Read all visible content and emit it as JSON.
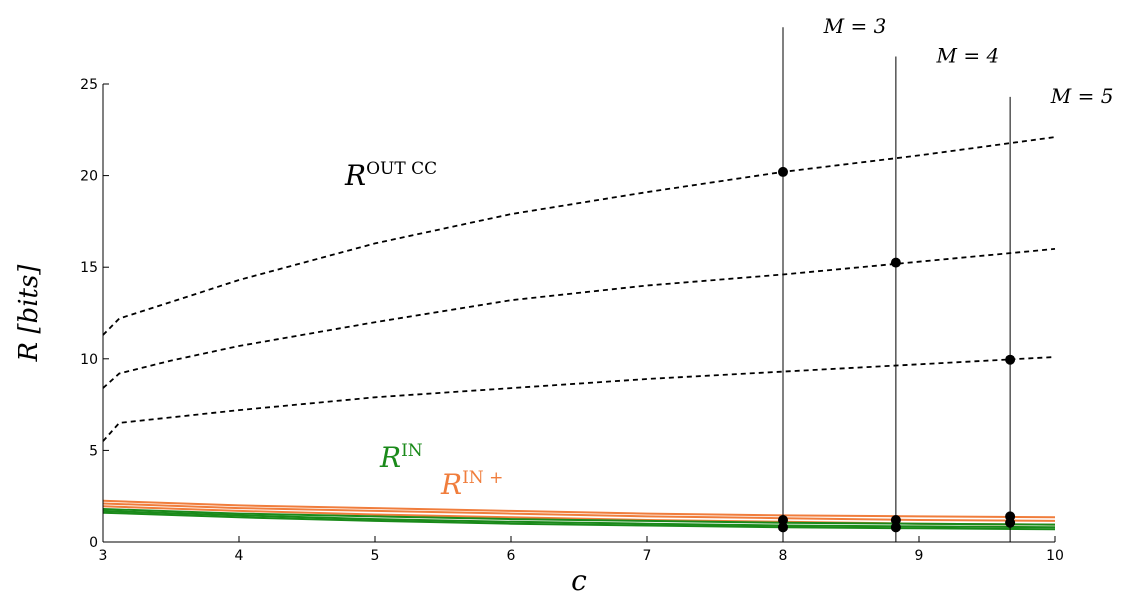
{
  "chart_data": {
    "type": "line",
    "xlabel": "c",
    "ylabel": "R [bits]",
    "ylabel_italic": "R",
    "ylabel_unit": "[bits]",
    "xlim": [
      3,
      10
    ],
    "ylim": [
      0,
      25
    ],
    "x_ticks": [
      "3",
      "4",
      "5",
      "6",
      "7",
      "8",
      "9",
      "10"
    ],
    "y_ticks": [
      "0",
      "5",
      "10",
      "15",
      "20",
      "25"
    ],
    "grid": false,
    "colors": {
      "outer_cc": "#000000",
      "inner": "#1a8a1a",
      "inner_plus": "#f07d3c",
      "marker": "#000000"
    },
    "labels": {
      "outer_cc": {
        "base": "R",
        "sup": "OUT CC"
      },
      "inner": {
        "base": "R",
        "sup": "IN"
      },
      "inner_plus": {
        "base": "R",
        "sup": "IN +"
      }
    },
    "outer_cc_series": [
      {
        "x": [
          3.0,
          3.12,
          3.5,
          4,
          5,
          6,
          7,
          8,
          9,
          10
        ],
        "y": [
          11.3,
          12.2,
          13.1,
          14.3,
          16.3,
          17.9,
          19.1,
          20.2,
          21.1,
          22.1
        ]
      },
      {
        "x": [
          3.0,
          3.12,
          3.5,
          4,
          5,
          6,
          7,
          8,
          9,
          10
        ],
        "y": [
          8.4,
          9.2,
          9.9,
          10.7,
          12.0,
          13.2,
          14.0,
          14.6,
          15.3,
          16.0
        ]
      },
      {
        "x": [
          3.0,
          3.12,
          3.5,
          4,
          5,
          6,
          7,
          8,
          9,
          10
        ],
        "y": [
          5.5,
          6.5,
          6.8,
          7.2,
          7.9,
          8.4,
          8.9,
          9.3,
          9.7,
          10.1
        ]
      }
    ],
    "inner_plus_series": [
      {
        "x": [
          3,
          4,
          5,
          6,
          7,
          8,
          9,
          10
        ],
        "y": [
          2.25,
          2.0,
          1.85,
          1.7,
          1.55,
          1.45,
          1.4,
          1.35
        ]
      },
      {
        "x": [
          3,
          4,
          5,
          6,
          7,
          8,
          9,
          10
        ],
        "y": [
          2.1,
          1.85,
          1.7,
          1.55,
          1.4,
          1.3,
          1.2,
          1.15
        ]
      },
      {
        "x": [
          3,
          4,
          5,
          6,
          7,
          8,
          9,
          10
        ],
        "y": [
          1.95,
          1.7,
          1.5,
          1.35,
          1.2,
          1.1,
          1.0,
          0.95
        ]
      }
    ],
    "inner_series": [
      {
        "x": [
          3,
          4,
          5,
          6,
          7,
          8,
          9,
          10
        ],
        "y": [
          1.8,
          1.55,
          1.4,
          1.25,
          1.15,
          1.05,
          1.0,
          0.95
        ]
      },
      {
        "x": [
          3,
          4,
          5,
          6,
          7,
          8,
          9,
          10
        ],
        "y": [
          1.7,
          1.45,
          1.25,
          1.1,
          1.0,
          0.9,
          0.85,
          0.8
        ]
      },
      {
        "x": [
          3,
          4,
          5,
          6,
          7,
          8,
          9,
          10
        ],
        "y": [
          1.6,
          1.35,
          1.15,
          1.0,
          0.9,
          0.8,
          0.75,
          0.7
        ]
      }
    ],
    "m_markers": [
      {
        "label": "M = 3",
        "x": 8.0,
        "top": 28.1,
        "points": [
          20.2,
          1.2,
          0.8
        ]
      },
      {
        "label": "M = 4",
        "x": 8.83,
        "top": 26.5,
        "points": [
          15.25,
          1.2,
          0.8
        ]
      },
      {
        "label": "M = 5",
        "x": 9.67,
        "top": 24.3,
        "points": [
          9.95,
          1.4,
          1.05
        ]
      }
    ]
  }
}
